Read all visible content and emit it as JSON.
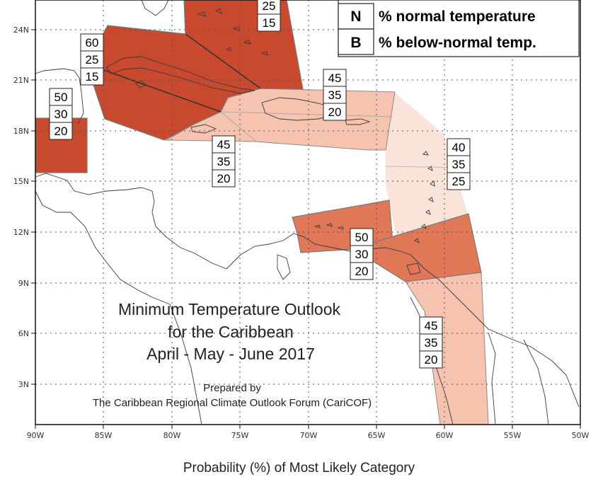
{
  "map": {
    "latitude_labels": [
      "24N",
      "21N",
      "18N",
      "15N",
      "12N",
      "9N",
      "6N",
      "3N"
    ],
    "longitude_labels": [
      "90W",
      "85W",
      "80W",
      "75W",
      "70W",
      "65W",
      "60W",
      "55W",
      "50W"
    ]
  },
  "legend": {
    "items": [
      {
        "letter": "N",
        "text": "% normal temperature"
      },
      {
        "letter": "B",
        "text": "% below-normal temp."
      }
    ]
  },
  "title": {
    "line1": "Minimum Temperature Outlook",
    "line2": "for the Caribbean",
    "line3": "April - May - June 2017"
  },
  "credit": {
    "line1": "Prepared by",
    "line2": "The Caribbean Regional Climate Outlook Forum (CariCOF)"
  },
  "caption": "Probability (%) of Most Likely Category",
  "regions": [
    {
      "name": "bahamas",
      "color": "#c8492d"
    },
    {
      "name": "cuba-west",
      "color": "#c8492d"
    },
    {
      "name": "belize",
      "color": "#c8492d"
    },
    {
      "name": "hispaniola",
      "color": "#f6c3ae"
    },
    {
      "name": "lesser-antilles",
      "color": "#fae3d8"
    },
    {
      "name": "venezuela-coast",
      "color": "#e07858"
    },
    {
      "name": "guianas",
      "color": "#f6c3ae"
    }
  ],
  "probability_boxes": [
    {
      "values": [
        "25",
        "15"
      ]
    },
    {
      "values": [
        "60",
        "25",
        "15"
      ]
    },
    {
      "values": [
        "50",
        "30",
        "20"
      ]
    },
    {
      "values": [
        "45",
        "35",
        "20"
      ]
    },
    {
      "values": [
        "45",
        "35",
        "20"
      ]
    },
    {
      "values": [
        "40",
        "35",
        "25"
      ]
    },
    {
      "values": [
        "50",
        "30",
        "20"
      ]
    },
    {
      "values": [
        "45",
        "35",
        "20"
      ]
    }
  ]
}
